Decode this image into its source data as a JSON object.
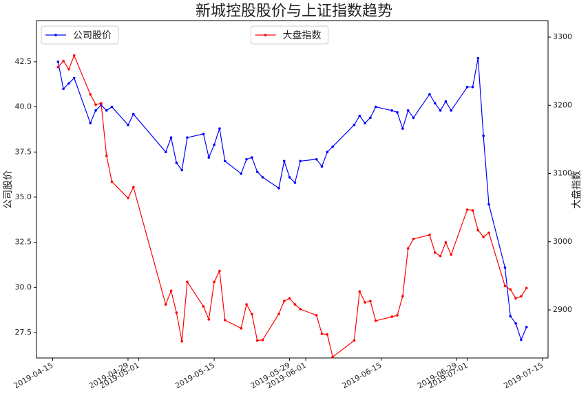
{
  "chart_data": {
    "type": "line",
    "title": "新城控股股价与上证指数趋势",
    "ylabel": "公司股价",
    "y2label": "大盘指数",
    "x": [
      "2019-04-16",
      "2019-04-17",
      "2019-04-18",
      "2019-04-19",
      "2019-04-22",
      "2019-04-23",
      "2019-04-24",
      "2019-04-25",
      "2019-04-26",
      "2019-04-29",
      "2019-04-30",
      "2019-05-06",
      "2019-05-07",
      "2019-05-08",
      "2019-05-09",
      "2019-05-10",
      "2019-05-13",
      "2019-05-14",
      "2019-05-15",
      "2019-05-16",
      "2019-05-17",
      "2019-05-20",
      "2019-05-21",
      "2019-05-22",
      "2019-05-23",
      "2019-05-24",
      "2019-05-27",
      "2019-05-28",
      "2019-05-29",
      "2019-05-30",
      "2019-05-31",
      "2019-06-03",
      "2019-06-04",
      "2019-06-05",
      "2019-06-06",
      "2019-06-10",
      "2019-06-11",
      "2019-06-12",
      "2019-06-13",
      "2019-06-14",
      "2019-06-17",
      "2019-06-18",
      "2019-06-19",
      "2019-06-20",
      "2019-06-21",
      "2019-06-24",
      "2019-06-25",
      "2019-06-26",
      "2019-06-27",
      "2019-06-28",
      "2019-07-01",
      "2019-07-02",
      "2019-07-03",
      "2019-07-04",
      "2019-07-05",
      "2019-07-08",
      "2019-07-09",
      "2019-07-10",
      "2019-07-11",
      "2019-07-12"
    ],
    "series": [
      {
        "name": "公司股价",
        "color": "#0000ff",
        "axis": "y",
        "values": [
          42.5,
          41.0,
          41.3,
          41.6,
          39.1,
          39.8,
          40.1,
          39.8,
          40.0,
          39.0,
          39.6,
          37.5,
          38.3,
          36.9,
          36.5,
          38.3,
          38.5,
          37.2,
          37.9,
          38.8,
          37.0,
          36.3,
          37.1,
          37.2,
          36.4,
          36.1,
          35.5,
          37.0,
          36.1,
          35.8,
          37.0,
          37.1,
          36.7,
          37.5,
          37.8,
          39.0,
          39.5,
          39.1,
          39.4,
          40.0,
          39.8,
          39.7,
          38.8,
          39.8,
          39.4,
          40.7,
          40.2,
          39.8,
          40.3,
          39.8,
          41.1,
          41.1,
          42.7,
          38.4,
          34.6,
          31.1,
          28.4,
          28.0,
          27.1,
          27.8
        ]
      },
      {
        "name": "大盘指数",
        "color": "#ff0000",
        "axis": "y2",
        "values": [
          3256,
          3265,
          3253,
          3273,
          3216,
          3201,
          3203,
          3126,
          3088,
          3064,
          3080,
          2908,
          2928,
          2896,
          2854,
          2941,
          2905,
          2886,
          2941,
          2957,
          2885,
          2873,
          2908,
          2894,
          2855,
          2856,
          2894,
          2913,
          2917,
          2908,
          2901,
          2892,
          2865,
          2864,
          2831,
          2855,
          2927,
          2911,
          2913,
          2884,
          2890,
          2892,
          2920,
          2990,
          3004,
          3010,
          2984,
          2979,
          2999,
          2981,
          3047,
          3046,
          3017,
          3007,
          3013,
          2935,
          2930,
          2917,
          2920,
          2932
        ]
      }
    ],
    "xlim": [
      "2019-04-12",
      "2019-07-16"
    ],
    "xticks": [
      "2019-04-15",
      "2019-04-29",
      "2019-05-01",
      "2019-05-15",
      "2019-05-29",
      "2019-06-01",
      "2019-06-15",
      "2019-06-29",
      "2019-07-01",
      "2019-07-15"
    ],
    "ylim": [
      26.09,
      44.78
    ],
    "yticks": [
      27.5,
      {
        "value": 30,
        "label": "30.0"
      },
      32.5,
      {
        "value": 35,
        "label": "35.0"
      },
      37.5,
      {
        "value": 40,
        "label": "40.0"
      },
      42.5
    ],
    "y2lim": [
      2829.5,
      3324.2
    ],
    "y2ticks": [
      2900,
      3000,
      3100,
      3200,
      3300
    ],
    "legend": [
      "upper left",
      "upper center"
    ]
  }
}
